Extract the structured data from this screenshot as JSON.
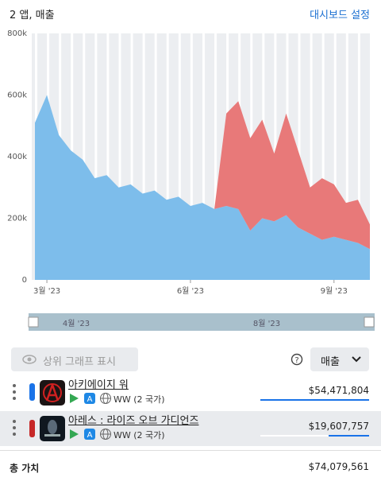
{
  "header": {
    "title": "2 앱, 매출",
    "link": "대시보드 설정"
  },
  "chart_data": {
    "type": "area",
    "categories": [
      null,
      "3월 '23",
      null,
      null,
      null,
      null,
      null,
      null,
      null,
      null,
      null,
      null,
      null,
      "6월 '23",
      null,
      null,
      null,
      null,
      null,
      null,
      null,
      null,
      null,
      null,
      null,
      "9월 '23",
      null,
      null,
      null
    ],
    "series": [
      {
        "name": "아키에이지 워",
        "color": "#7dbdeb",
        "values": [
          510000,
          600000,
          470000,
          420000,
          390000,
          330000,
          340000,
          300000,
          310000,
          280000,
          290000,
          260000,
          270000,
          240000,
          250000,
          230000,
          240000,
          230000,
          160000,
          200000,
          190000,
          210000,
          170000,
          150000,
          130000,
          140000,
          130000,
          120000,
          100000
        ]
      },
      {
        "name": "아레스 : 라이즈 오브 가디언즈",
        "color": "#e87979",
        "values": [
          0,
          0,
          0,
          0,
          0,
          0,
          0,
          0,
          0,
          0,
          0,
          0,
          0,
          0,
          0,
          0,
          300000,
          350000,
          300000,
          320000,
          220000,
          330000,
          250000,
          150000,
          200000,
          170000,
          120000,
          140000,
          80000
        ]
      }
    ],
    "ylim": [
      0,
      800000
    ],
    "yticks": [
      0,
      {
        "value": 200000,
        "label": "200k"
      },
      {
        "value": 400000,
        "label": "400k"
      },
      {
        "value": 600000,
        "label": "600k"
      },
      {
        "value": 800000,
        "label": "800k"
      }
    ],
    "grid": false
  },
  "navigator": {
    "labels": [
      "4월 '23",
      "8월 '23"
    ]
  },
  "controls": {
    "toggle": "상위 그래프 표시",
    "metric": "매출"
  },
  "rows": [
    {
      "region": "WW (2 국가)",
      "amount": "$54,471,804"
    },
    {
      "region": "WW (2 국가)",
      "amount": "$19,607,757"
    }
  ],
  "footer": {
    "label": "총 가치",
    "amount": "$74,079,561"
  }
}
